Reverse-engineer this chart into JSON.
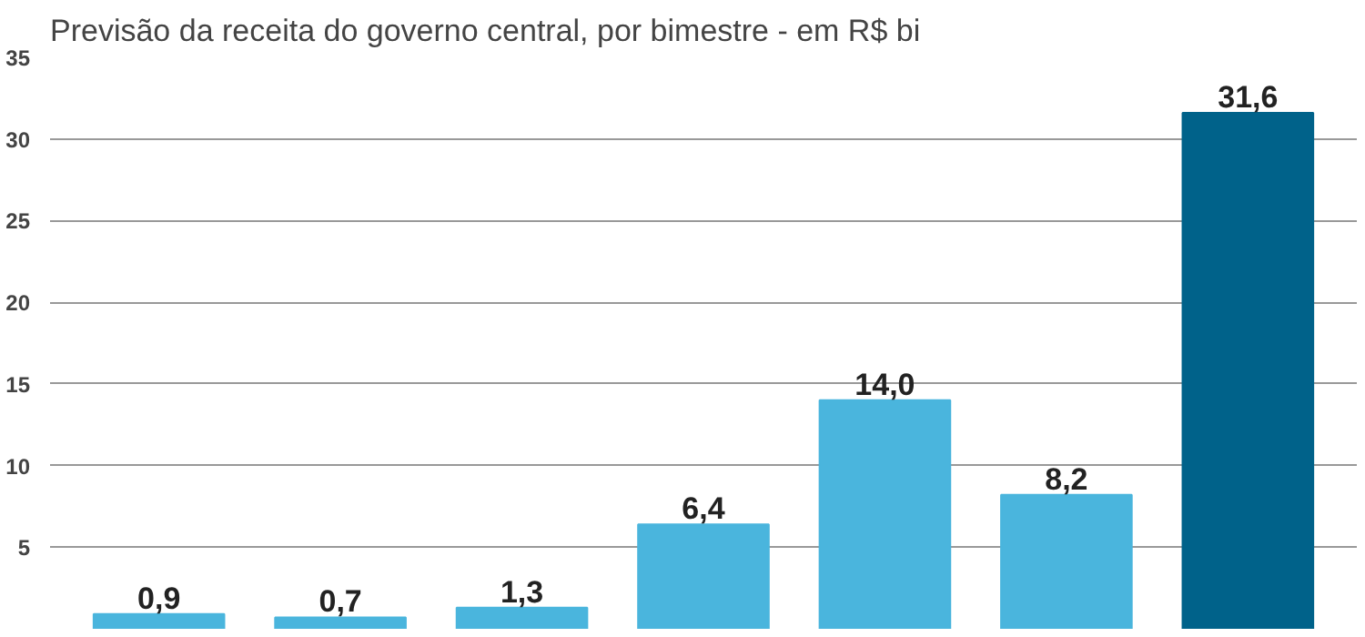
{
  "chart_data": {
    "type": "bar",
    "title": "Previsão da receita do governo central, por bimestre - em R$ bi",
    "categories": [
      null,
      null,
      null,
      null,
      null,
      null,
      null
    ],
    "values": [
      0.9,
      0.7,
      1.3,
      6.4,
      14.0,
      8.2,
      31.6
    ],
    "value_labels": [
      "0,9",
      "0,7",
      "1,3",
      "6,4",
      "14,0",
      "8,2",
      "31,6"
    ],
    "colors": [
      "#4ab5dd",
      "#4ab5dd",
      "#4ab5dd",
      "#4ab5dd",
      "#4ab5dd",
      "#4ab5dd",
      "#00628a"
    ],
    "ylim": [
      0,
      35
    ],
    "yticks": [
      5,
      10,
      15,
      20,
      25,
      30,
      35
    ],
    "grid": "y",
    "tick_labels": "y"
  }
}
